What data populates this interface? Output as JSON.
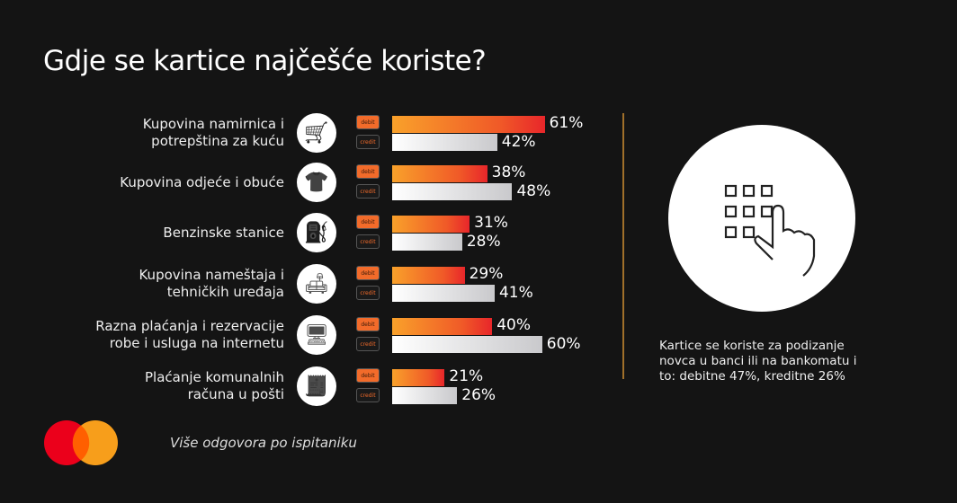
{
  "title": "Gdje se kartice najčešće koriste?",
  "tags": {
    "debit": "debit",
    "credit": "credit"
  },
  "chart_data": {
    "type": "bar",
    "title": "Gdje se kartice najčešće koriste?",
    "categories": [
      "Kupovina namirnica i potrepština za kuću",
      "Kupovina odjeće i obuće",
      "Benzinske stanice",
      "Kupovina nameštaja i tehničkih uređaja",
      "Razna plaćanja i rezervacije robe i usluga na internetu",
      "Plaćanje komunalnih računa u pošti"
    ],
    "series": [
      {
        "name": "debit",
        "values": [
          61,
          38,
          31,
          29,
          40,
          21
        ]
      },
      {
        "name": "credit",
        "values": [
          42,
          48,
          28,
          41,
          60,
          26
        ]
      }
    ],
    "value_labels": {
      "debit": [
        "61%",
        "38%",
        "31%",
        "29%",
        "40%",
        "21%"
      ],
      "credit": [
        "42%",
        "48%",
        "28%",
        "41%",
        "60%",
        "26%"
      ]
    },
    "label_lines": [
      [
        "Kupovina namirnica i",
        "potrepština za kuću"
      ],
      [
        "Kupovina odjeće i obuće"
      ],
      [
        "Benzinske stanice"
      ],
      [
        "Kupovina nameštaja i",
        "tehničkih uređaja"
      ],
      [
        "Razna plaćanja i rezervacije",
        "robe i usluga na internetu"
      ],
      [
        "Plaćanje komunalnih",
        "računa u pošti"
      ]
    ],
    "icons": [
      "cart-icon",
      "clothes-icon",
      "fuel-pump-icon",
      "sofa-icon",
      "online-shop-icon",
      "computer-bill-icon"
    ],
    "xlim": [
      0,
      100
    ],
    "colors": {
      "debit": "#f05a28",
      "credit": "#d0d0d3"
    }
  },
  "note": "Kartice se koriste za podizanje novca u banci ili na bankomatu i to: debitne 47%, kreditne 26%",
  "footer": "Više odgovora po ispitaniku"
}
